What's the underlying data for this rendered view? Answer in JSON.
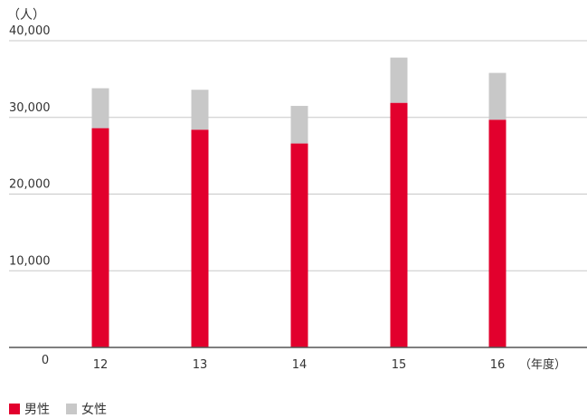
{
  "unit_label": "（人）",
  "x_unit_label": "（年度）",
  "legend": [
    {
      "label": "男性",
      "color": "#e2002d"
    },
    {
      "label": "女性",
      "color": "#c8c8c8"
    }
  ],
  "chart_data": {
    "type": "bar",
    "stacked": true,
    "categories": [
      "12",
      "13",
      "14",
      "15",
      "16"
    ],
    "series": [
      {
        "name": "男性",
        "color": "#e2002d",
        "values": [
          28600,
          28400,
          26600,
          31900,
          29700
        ]
      },
      {
        "name": "女性",
        "color": "#c8c8c8",
        "values": [
          5200,
          5200,
          4900,
          5900,
          6100
        ]
      }
    ],
    "ylim": [
      0,
      40000
    ],
    "yticks": [
      "0",
      "10,000",
      "20,000",
      "30,000",
      "40,000"
    ],
    "ytick_values": [
      0,
      10000,
      20000,
      30000,
      40000
    ],
    "grid": true,
    "legend_position": "bottom-left"
  }
}
